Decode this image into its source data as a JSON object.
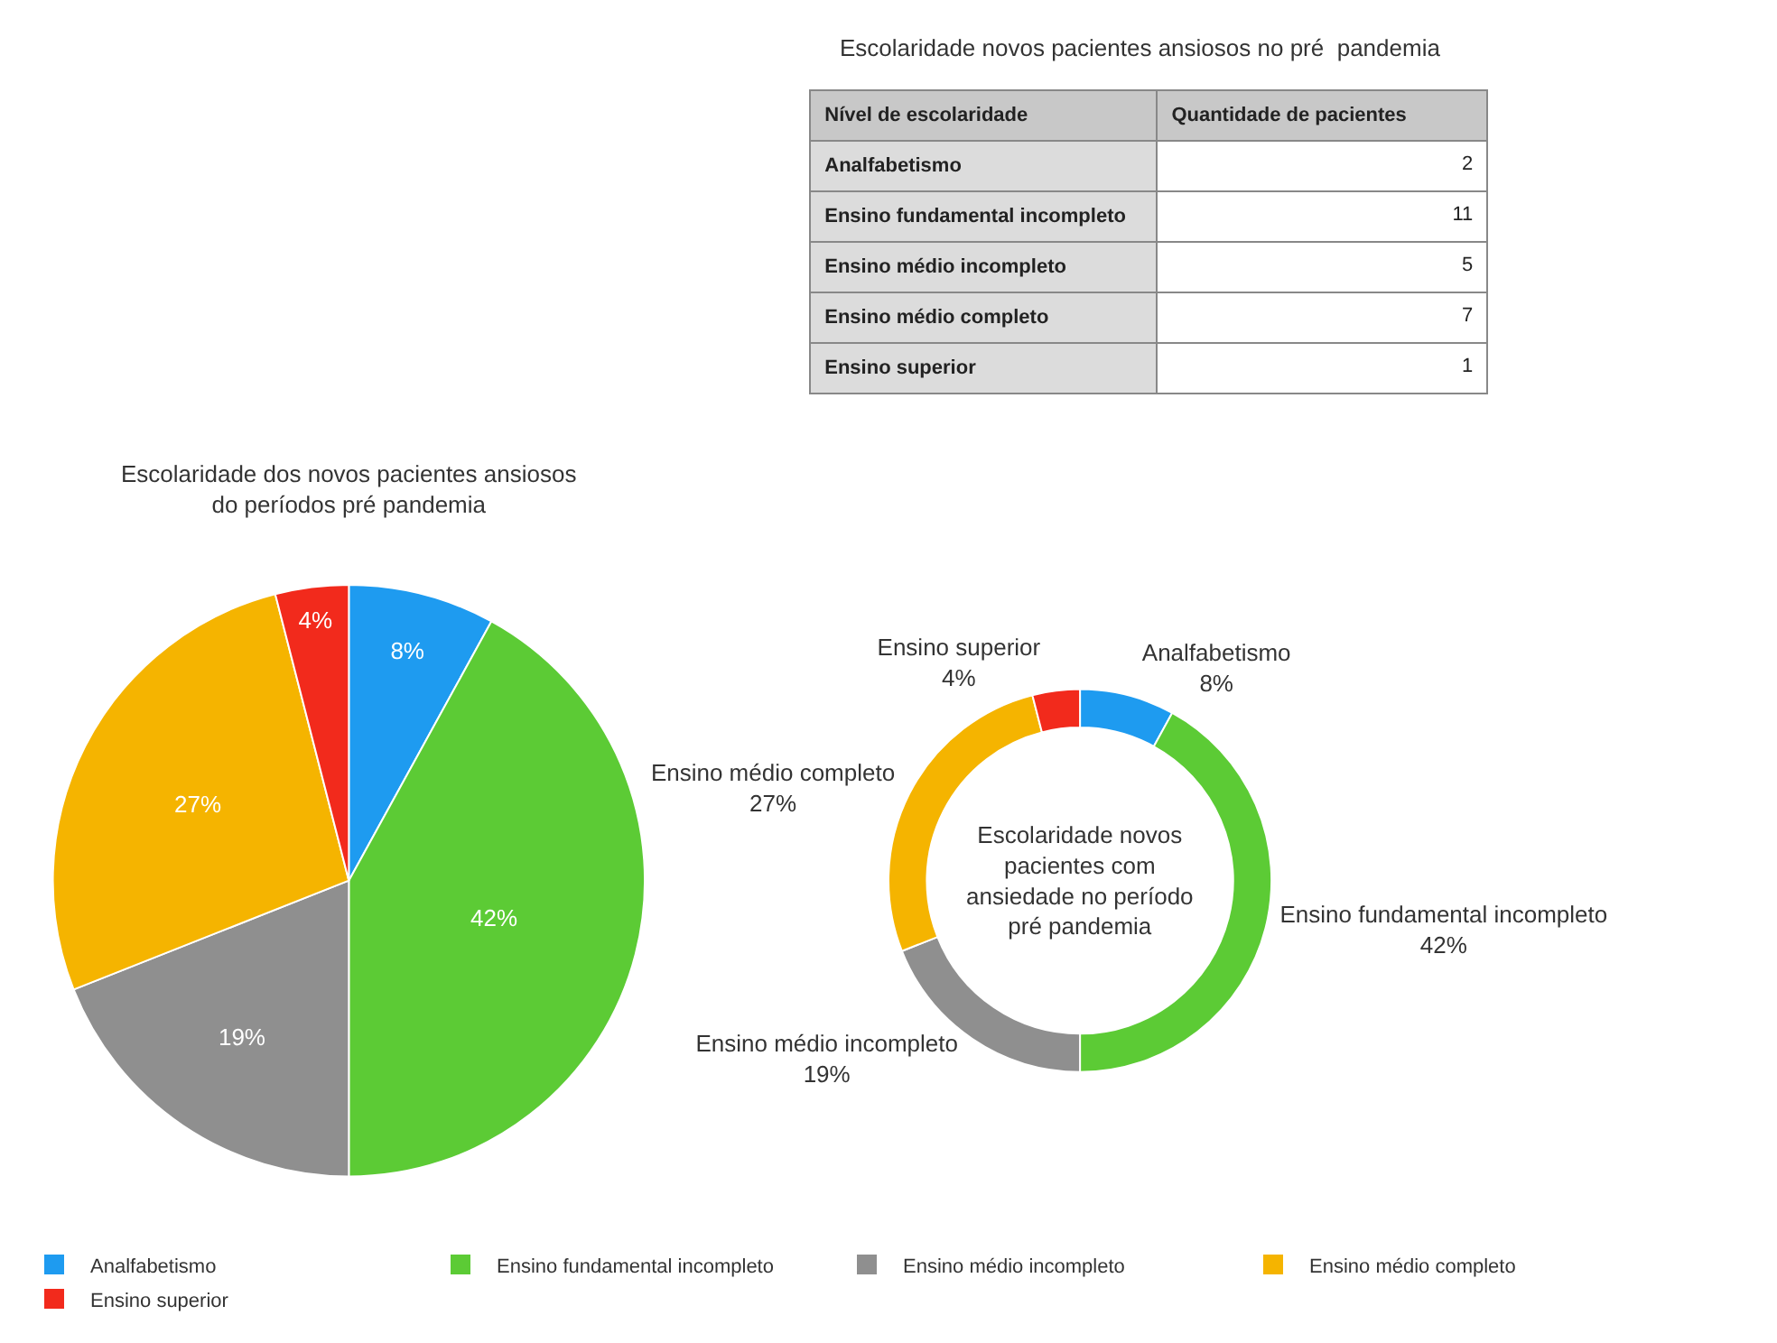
{
  "chart_data": [
    {
      "type": "other",
      "title": "Escolaridade novos pacientes ansiosos no pré  pandemia",
      "xlabel": "Nível de escolaridade",
      "ylabel": "Quantidade de pacientes",
      "categories": [
        "Analfabetismo",
        "Ensino fundamental incompleto",
        "Ensino médio incompleto",
        "Ensino médio completo",
        "Ensino superior"
      ],
      "values": [
        2,
        11,
        5,
        7,
        1
      ],
      "data_labels": true
    },
    {
      "type": "pie",
      "title": "Escolaridade dos novos pacientes ansiosos\ndo períodos pré pandemia",
      "categories": [
        "Analfabetismo",
        "Ensino fundamental incompleto",
        "Ensino médio incompleto",
        "Ensino médio completo",
        "Ensino superior"
      ],
      "values": [
        8,
        42,
        19,
        27,
        4
      ],
      "value_labels": [
        "8%",
        "42%",
        "19%",
        "27%",
        "4%"
      ],
      "colors": [
        "#1e9bf0",
        "#5ccb35",
        "#8f8f8f",
        "#f5b400",
        "#f22a1c"
      ],
      "legend": "bottom"
    },
    {
      "type": "donut",
      "annotations": [
        "Escolaridade novos\npacientes com\nansiedade no período\npré pandemia"
      ],
      "categories": [
        "Analfabetismo",
        "Ensino fundamental incompleto",
        "Ensino médio incompleto",
        "Ensino médio completo",
        "Ensino superior"
      ],
      "values": [
        8,
        42,
        19,
        27,
        4
      ],
      "value_labels": [
        "8%",
        "42%",
        "19%",
        "27%",
        "4%"
      ],
      "colors": [
        "#1e9bf0",
        "#5ccb35",
        "#8f8f8f",
        "#f5b400",
        "#f22a1c"
      ]
    }
  ]
}
